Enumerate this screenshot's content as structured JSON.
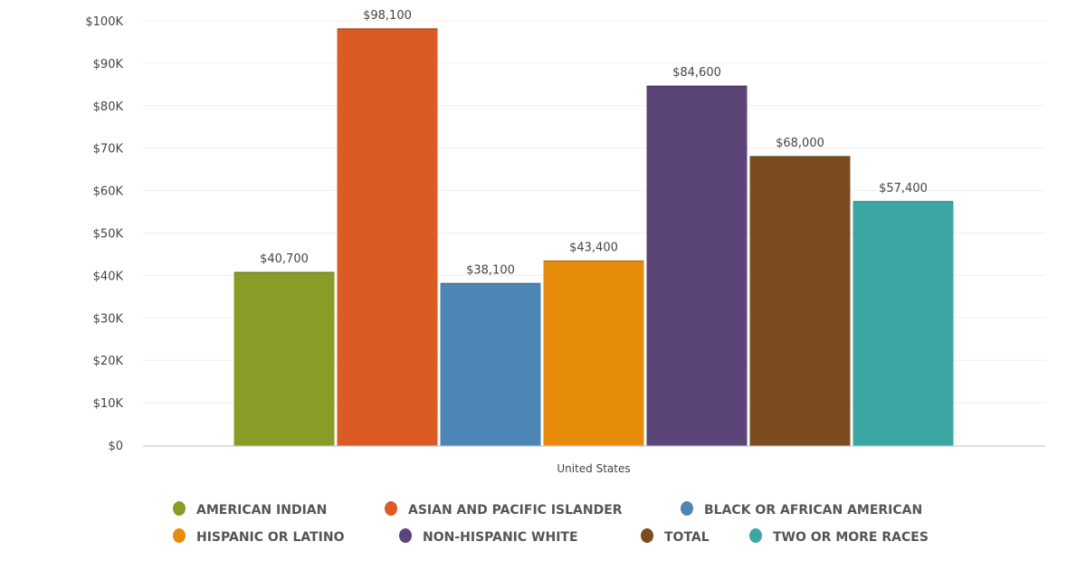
{
  "chart_data": {
    "type": "bar",
    "title": "",
    "xlabel": "",
    "ylabel": "",
    "categories": [
      "United States"
    ],
    "ylim": [
      0,
      100000
    ],
    "yticks": [
      0,
      10000,
      20000,
      30000,
      40000,
      50000,
      60000,
      70000,
      80000,
      90000,
      100000
    ],
    "ytick_labels": [
      "$0",
      "$10K",
      "$20K",
      "$30K",
      "$40K",
      "$50K",
      "$60K",
      "$70K",
      "$80K",
      "$90K",
      "$100K"
    ],
    "grid": true,
    "legend_placement": "bottom",
    "series": [
      {
        "name": "AMERICAN INDIAN",
        "values": [
          40700
        ],
        "label": "$40,700",
        "color": "#8a9c25"
      },
      {
        "name": "ASIAN AND PACIFIC ISLANDER",
        "values": [
          98100
        ],
        "label": "$98,100",
        "color": "#dc5a24"
      },
      {
        "name": "BLACK OR AFRICAN AMERICAN",
        "values": [
          38100
        ],
        "label": "$38,100",
        "color": "#4d86b4"
      },
      {
        "name": "HISPANIC OR LATINO",
        "values": [
          43400
        ],
        "label": "$43,400",
        "color": "#e68c0a"
      },
      {
        "name": "NON-HISPANIC WHITE",
        "values": [
          84600
        ],
        "label": "$84,600",
        "color": "#5a4478"
      },
      {
        "name": "TOTAL",
        "values": [
          68000
        ],
        "label": "$68,000",
        "color": "#7b4c1f"
      },
      {
        "name": "TWO OR MORE RACES",
        "values": [
          57400
        ],
        "label": "$57,400",
        "color": "#3ca7a2"
      }
    ]
  }
}
